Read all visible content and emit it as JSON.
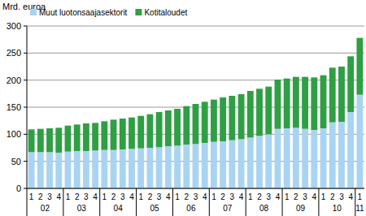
{
  "chart_data": {
    "type": "bar",
    "stacked": true,
    "grid": true,
    "legend": "top-left",
    "y_label": "Mrd. euroa",
    "categories": [
      "1",
      "2",
      "3",
      "4",
      "1",
      "2",
      "3",
      "4",
      "1",
      "2",
      "3",
      "4",
      "1",
      "2",
      "3",
      "4",
      "1",
      "2",
      "3",
      "4",
      "1",
      "2",
      "3",
      "4",
      "1",
      "2",
      "3",
      "4",
      "1",
      "2",
      "3",
      "4",
      "1",
      "2",
      "3",
      "4",
      "1"
    ],
    "groups": [
      "02",
      null,
      null,
      null,
      "03",
      null,
      null,
      null,
      "04",
      null,
      null,
      null,
      "05",
      null,
      null,
      null,
      "06",
      null,
      null,
      null,
      "07",
      null,
      null,
      null,
      "08",
      null,
      null,
      null,
      "09",
      null,
      null,
      null,
      "10",
      null,
      null,
      null,
      "11"
    ],
    "series": [
      {
        "name": "Muut luotonsaajasektorit",
        "color": "#a8d4f2",
        "values": [
          67,
          67,
          67,
          66,
          68,
          69,
          69,
          70,
          71,
          71,
          72,
          73,
          74,
          75,
          76,
          78,
          79,
          81,
          82,
          84,
          86,
          87,
          89,
          91,
          94,
          97,
          100,
          110,
          111,
          112,
          110,
          108,
          111,
          122,
          123,
          141,
          173
        ]
      },
      {
        "name": "Kotitaloudet",
        "color": "#2ea043",
        "values": [
          42,
          43,
          44,
          46,
          48,
          49,
          51,
          51,
          53,
          56,
          57,
          58,
          60,
          62,
          65,
          66,
          68,
          71,
          74,
          76,
          78,
          81,
          82,
          83,
          86,
          87,
          88,
          91,
          92,
          94,
          96,
          97,
          98,
          101,
          102,
          103,
          105
        ]
      }
    ],
    "ylim": [
      0,
      300
    ],
    "yticks": [
      0,
      50,
      100,
      150,
      200,
      250,
      300
    ]
  }
}
